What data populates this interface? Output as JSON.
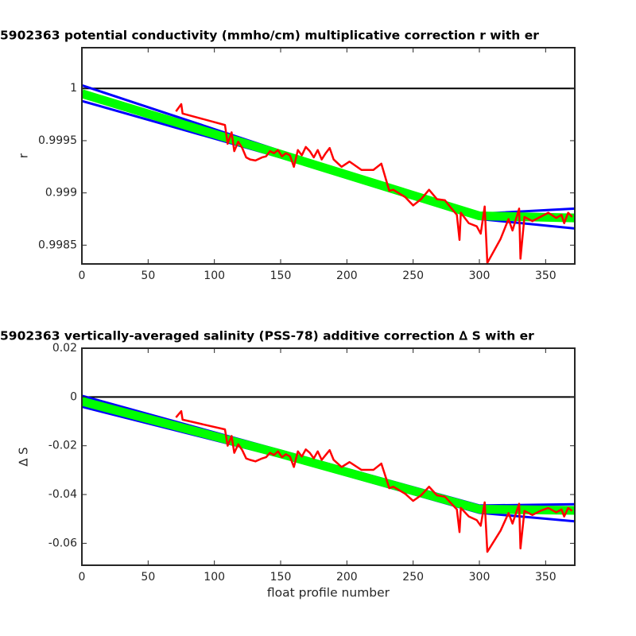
{
  "chart_data": [
    {
      "type": "line",
      "title": "5902363 potential conductivity (mmho/cm) multiplicative correction r with er",
      "ylabel": "r",
      "xlim": [
        0,
        372
      ],
      "xticks": [
        0,
        50,
        100,
        150,
        200,
        250,
        300,
        350
      ],
      "ylim": [
        0.99832,
        1.00039
      ],
      "yticks": [
        0.9985,
        0.999,
        0.9995,
        1
      ],
      "series": [
        {
          "color": "#000000",
          "x": [
            0,
            372
          ],
          "values": [
            1,
            1
          ]
        },
        {
          "color": "#0000ff",
          "x": [
            0,
            150,
            300,
            372
          ],
          "values": [
            1.00003,
            0.9994,
            0.9988,
            0.99885
          ]
        },
        {
          "color": "#0000ff",
          "x": [
            0,
            150,
            300,
            372
          ],
          "values": [
            0.99988,
            0.99934,
            0.99875,
            0.99866
          ]
        },
        {
          "color": "#00ff00",
          "x": [
            0,
            150,
            300,
            372
          ],
          "values": [
            0.99995,
            0.99937,
            0.99878,
            0.99876
          ]
        },
        {
          "color": "#ff0000",
          "x": [
            71,
            75,
            76,
            108,
            110,
            113,
            115,
            118,
            121,
            124,
            127,
            131,
            136,
            139,
            142,
            145,
            148,
            151,
            154,
            157,
            160,
            163,
            166,
            169,
            172,
            175,
            178,
            181,
            184,
            187,
            190,
            196,
            202,
            211,
            220,
            226,
            232,
            235,
            244,
            250,
            256,
            262,
            268,
            274,
            279,
            283,
            285,
            286,
            292,
            298,
            301,
            304,
            306,
            316,
            322,
            325,
            330,
            331,
            334,
            340,
            346,
            352,
            358,
            362,
            364,
            367,
            370
          ],
          "values": [
            0.99978,
            0.99985,
            0.99976,
            0.99965,
            0.99947,
            0.99958,
            0.9994,
            0.99949,
            0.99943,
            0.99934,
            0.99932,
            0.99931,
            0.99934,
            0.99935,
            0.9994,
            0.99938,
            0.99941,
            0.99935,
            0.99938,
            0.99936,
            0.99925,
            0.99941,
            0.99936,
            0.99944,
            0.9994,
            0.99934,
            0.99941,
            0.99932,
            0.99938,
            0.99943,
            0.99932,
            0.99925,
            0.9993,
            0.99922,
            0.99922,
            0.99928,
            0.99902,
            0.99903,
            0.99896,
            0.99888,
            0.99894,
            0.99903,
            0.99894,
            0.99893,
            0.99885,
            0.99879,
            0.99855,
            0.99881,
            0.99871,
            0.99868,
            0.99861,
            0.99887,
            0.99833,
            0.99856,
            0.99875,
            0.99864,
            0.99885,
            0.99837,
            0.99877,
            0.99873,
            0.99877,
            0.99881,
            0.99876,
            0.99879,
            0.99871,
            0.99881,
            0.99877
          ]
        }
      ]
    },
    {
      "type": "line",
      "title": "5902363 vertically-averaged salinity (PSS-78) additive correction ∆ S with er",
      "ylabel": "∆ S",
      "xlabel": "float profile number",
      "xlim": [
        0,
        372
      ],
      "xticks": [
        0,
        50,
        100,
        150,
        200,
        250,
        300,
        350
      ],
      "ylim": [
        -0.069,
        0.02
      ],
      "yticks": [
        -0.06,
        -0.04,
        -0.02,
        0,
        0.02
      ],
      "series": [
        {
          "color": "#000000",
          "x": [
            0,
            372
          ],
          "values": [
            0,
            0
          ]
        },
        {
          "color": "#0000ff",
          "x": [
            0,
            150,
            300,
            372
          ],
          "values": [
            0.0005,
            -0.022,
            -0.0445,
            -0.044
          ]
        },
        {
          "color": "#0000ff",
          "x": [
            0,
            150,
            300,
            372
          ],
          "values": [
            -0.004,
            -0.0245,
            -0.0475,
            -0.051
          ]
        },
        {
          "color": "#00ff00",
          "x": [
            0,
            150,
            300,
            372
          ],
          "values": [
            -0.0018,
            -0.0233,
            -0.046,
            -0.0465
          ]
        },
        {
          "color": "#ff0000",
          "x": [
            71,
            75,
            76,
            108,
            110,
            113,
            115,
            118,
            121,
            124,
            127,
            131,
            136,
            139,
            142,
            145,
            148,
            151,
            154,
            157,
            160,
            163,
            166,
            169,
            172,
            175,
            178,
            181,
            184,
            187,
            190,
            196,
            202,
            211,
            220,
            226,
            232,
            235,
            244,
            250,
            256,
            262,
            268,
            274,
            279,
            283,
            285,
            286,
            292,
            298,
            301,
            304,
            306,
            316,
            322,
            325,
            330,
            331,
            334,
            340,
            346,
            352,
            358,
            362,
            364,
            367,
            370
          ],
          "values": [
            -0.0084,
            -0.0058,
            -0.0093,
            -0.0133,
            -0.02,
            -0.016,
            -0.0229,
            -0.0194,
            -0.0218,
            -0.0252,
            -0.0258,
            -0.0264,
            -0.0252,
            -0.0247,
            -0.0229,
            -0.0238,
            -0.0223,
            -0.0247,
            -0.0235,
            -0.0244,
            -0.0287,
            -0.0223,
            -0.0244,
            -0.0215,
            -0.0229,
            -0.0252,
            -0.0223,
            -0.0258,
            -0.0238,
            -0.0218,
            -0.0258,
            -0.0287,
            -0.0267,
            -0.0299,
            -0.0299,
            -0.0273,
            -0.0374,
            -0.0368,
            -0.0397,
            -0.0426,
            -0.0403,
            -0.0368,
            -0.0403,
            -0.0409,
            -0.0438,
            -0.0461,
            -0.0554,
            -0.0455,
            -0.049,
            -0.0505,
            -0.0528,
            -0.0432,
            -0.0635,
            -0.0548,
            -0.0476,
            -0.0519,
            -0.0438,
            -0.0621,
            -0.0467,
            -0.0484,
            -0.0467,
            -0.0455,
            -0.0473,
            -0.0461,
            -0.049,
            -0.0455,
            -0.0467
          ]
        }
      ]
    }
  ]
}
